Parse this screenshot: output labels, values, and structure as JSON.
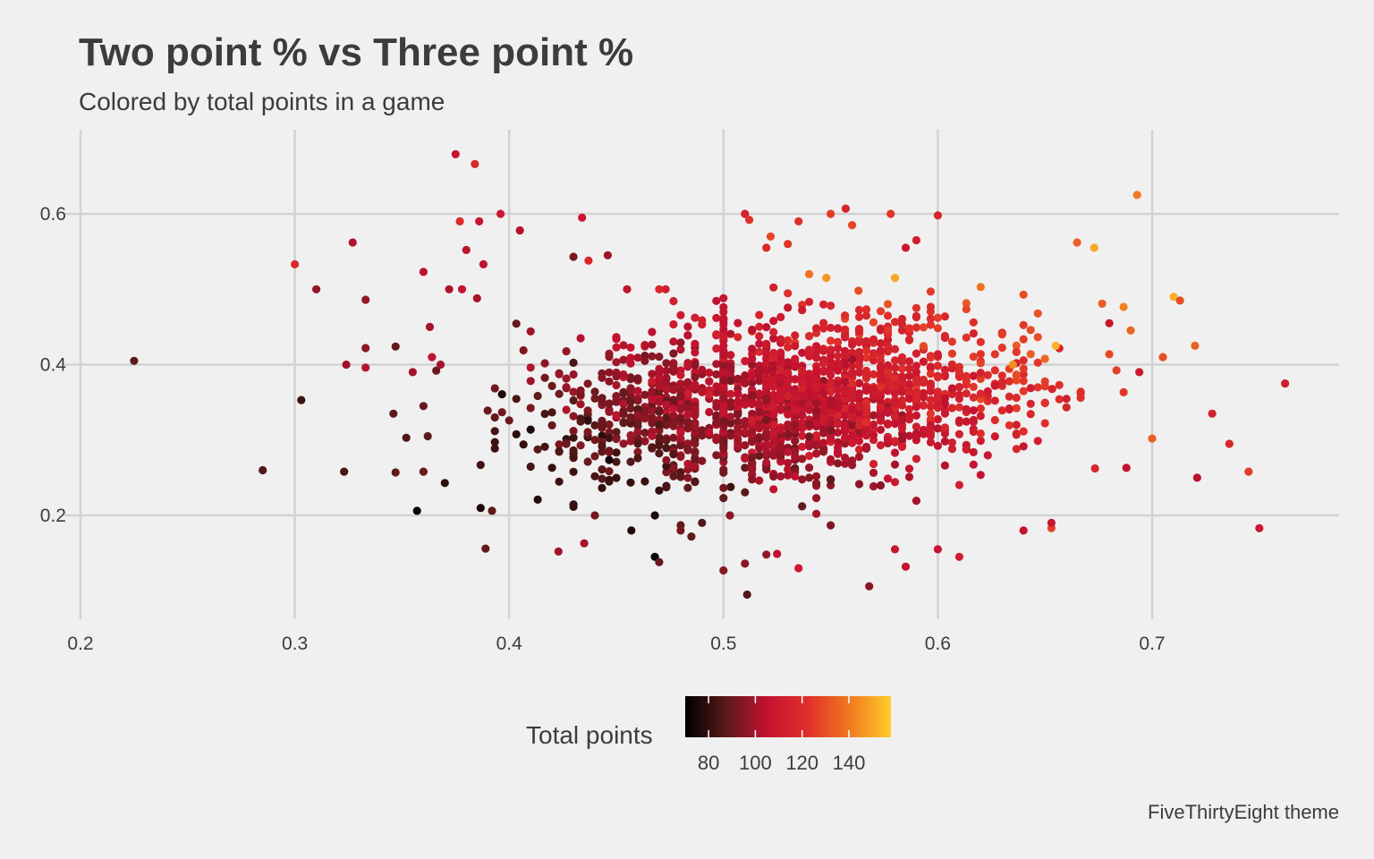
{
  "chart_data": {
    "type": "scatter",
    "title": "Two point % vs Three point %",
    "subtitle": "Colored by total points in a game",
    "xlabel": "",
    "ylabel": "",
    "xlim": [
      0.2,
      0.788
    ],
    "ylim": [
      0.08,
      0.7
    ],
    "xticks": [
      0.2,
      0.3,
      0.4,
      0.5,
      0.6,
      0.7
    ],
    "xtick_labels": [
      "0.2",
      "0.3",
      "0.4",
      "0.5",
      "0.6",
      "0.7"
    ],
    "yticks": [
      0.2,
      0.4,
      0.6
    ],
    "ytick_labels": [
      "0.2",
      "0.4",
      "0.6"
    ],
    "grid": true,
    "caption": "FiveThirtyEight theme",
    "color_scale": {
      "title": "Total points",
      "min": 70,
      "max": 158,
      "ticks": [
        80,
        100,
        120,
        140
      ],
      "tick_labels": [
        "80",
        "100",
        "120",
        "140"
      ],
      "colors": [
        "#000000",
        "#5a1a1a",
        "#c41230",
        "#e0302a",
        "#f07a20",
        "#ffcc2a"
      ],
      "legend_position": "bottom"
    },
    "points": [
      [
        0.225,
        0.405,
        88
      ],
      [
        0.285,
        0.26,
        86
      ],
      [
        0.3,
        0.533,
        120
      ],
      [
        0.303,
        0.353,
        82
      ],
      [
        0.31,
        0.5,
        97
      ],
      [
        0.323,
        0.258,
        84
      ],
      [
        0.324,
        0.4,
        99
      ],
      [
        0.327,
        0.562,
        102
      ],
      [
        0.333,
        0.422,
        96
      ],
      [
        0.333,
        0.396,
        103
      ],
      [
        0.333,
        0.486,
        97
      ],
      [
        0.346,
        0.335,
        88
      ],
      [
        0.347,
        0.424,
        89
      ],
      [
        0.347,
        0.257,
        89
      ],
      [
        0.352,
        0.303,
        85
      ],
      [
        0.355,
        0.39,
        100
      ],
      [
        0.357,
        0.206,
        72
      ],
      [
        0.36,
        0.523,
        104
      ],
      [
        0.36,
        0.345,
        90
      ],
      [
        0.36,
        0.258,
        90
      ],
      [
        0.362,
        0.305,
        88
      ],
      [
        0.363,
        0.45,
        100
      ],
      [
        0.364,
        0.41,
        104
      ],
      [
        0.366,
        0.392,
        90
      ],
      [
        0.368,
        0.4,
        100
      ],
      [
        0.37,
        0.243,
        79
      ],
      [
        0.372,
        0.5,
        101
      ],
      [
        0.375,
        0.679,
        107
      ],
      [
        0.377,
        0.59,
        119
      ],
      [
        0.378,
        0.5,
        106
      ],
      [
        0.38,
        0.552,
        104
      ],
      [
        0.384,
        0.666,
        118
      ],
      [
        0.385,
        0.488,
        100
      ],
      [
        0.386,
        0.59,
        106
      ],
      [
        0.388,
        0.533,
        104
      ],
      [
        0.389,
        0.156,
        89
      ],
      [
        0.392,
        0.206,
        88
      ],
      [
        0.396,
        0.6,
        108
      ],
      [
        0.405,
        0.578,
        103
      ],
      [
        0.43,
        0.543,
        93
      ],
      [
        0.434,
        0.595,
        109
      ],
      [
        0.437,
        0.538,
        118
      ],
      [
        0.446,
        0.545,
        99
      ],
      [
        0.455,
        0.5,
        104
      ],
      [
        0.457,
        0.18,
        76
      ],
      [
        0.468,
        0.145,
        72
      ],
      [
        0.468,
        0.2,
        75
      ],
      [
        0.47,
        0.233,
        80
      ],
      [
        0.473,
        0.5,
        112
      ],
      [
        0.47,
        0.5,
        117
      ],
      [
        0.48,
        0.187,
        89
      ],
      [
        0.485,
        0.172,
        89
      ],
      [
        0.49,
        0.19,
        86
      ],
      [
        0.5,
        0.127,
        95
      ],
      [
        0.503,
        0.2,
        96
      ],
      [
        0.51,
        0.136,
        95
      ],
      [
        0.511,
        0.095,
        86
      ],
      [
        0.51,
        0.6,
        114
      ],
      [
        0.512,
        0.592,
        123
      ],
      [
        0.52,
        0.555,
        118
      ],
      [
        0.522,
        0.57,
        128
      ],
      [
        0.53,
        0.56,
        124
      ],
      [
        0.535,
        0.59,
        122
      ],
      [
        0.54,
        0.52,
        138
      ],
      [
        0.548,
        0.515,
        146
      ],
      [
        0.55,
        0.6,
        125
      ],
      [
        0.557,
        0.607,
        116
      ],
      [
        0.56,
        0.585,
        128
      ],
      [
        0.563,
        0.498,
        130
      ],
      [
        0.568,
        0.106,
        96
      ],
      [
        0.578,
        0.6,
        124
      ],
      [
        0.58,
        0.515,
        150
      ],
      [
        0.585,
        0.555,
        108
      ],
      [
        0.59,
        0.565,
        112
      ],
      [
        0.6,
        0.598,
        117
      ],
      [
        0.62,
        0.503,
        139
      ],
      [
        0.635,
        0.4,
        145
      ],
      [
        0.655,
        0.425,
        152
      ],
      [
        0.665,
        0.562,
        134
      ],
      [
        0.673,
        0.555,
        150
      ],
      [
        0.693,
        0.625,
        140
      ],
      [
        0.71,
        0.49,
        152
      ],
      [
        0.713,
        0.485,
        130
      ],
      [
        0.72,
        0.425,
        134
      ],
      [
        0.721,
        0.25,
        103
      ],
      [
        0.728,
        0.335,
        114
      ],
      [
        0.736,
        0.295,
        118
      ],
      [
        0.745,
        0.258,
        126
      ],
      [
        0.75,
        0.183,
        109
      ],
      [
        0.762,
        0.375,
        112
      ],
      [
        0.705,
        0.41,
        130
      ],
      [
        0.7,
        0.302,
        134
      ],
      [
        0.694,
        0.39,
        110
      ],
      [
        0.688,
        0.263,
        106
      ],
      [
        0.68,
        0.455,
        108
      ],
      [
        0.653,
        0.183,
        127
      ],
      [
        0.653,
        0.19,
        108
      ],
      [
        0.64,
        0.18,
        106
      ],
      [
        0.61,
        0.145,
        112
      ],
      [
        0.6,
        0.155,
        106
      ],
      [
        0.585,
        0.132,
        105
      ],
      [
        0.58,
        0.155,
        108
      ],
      [
        0.535,
        0.13,
        109
      ],
      [
        0.525,
        0.149,
        104
      ],
      [
        0.52,
        0.148,
        97
      ],
      [
        0.47,
        0.138,
        90
      ],
      [
        0.435,
        0.163,
        100
      ],
      [
        0.423,
        0.152,
        99
      ],
      [
        0.48,
        0.18,
        92
      ],
      [
        0.44,
        0.2,
        92
      ]
    ]
  }
}
